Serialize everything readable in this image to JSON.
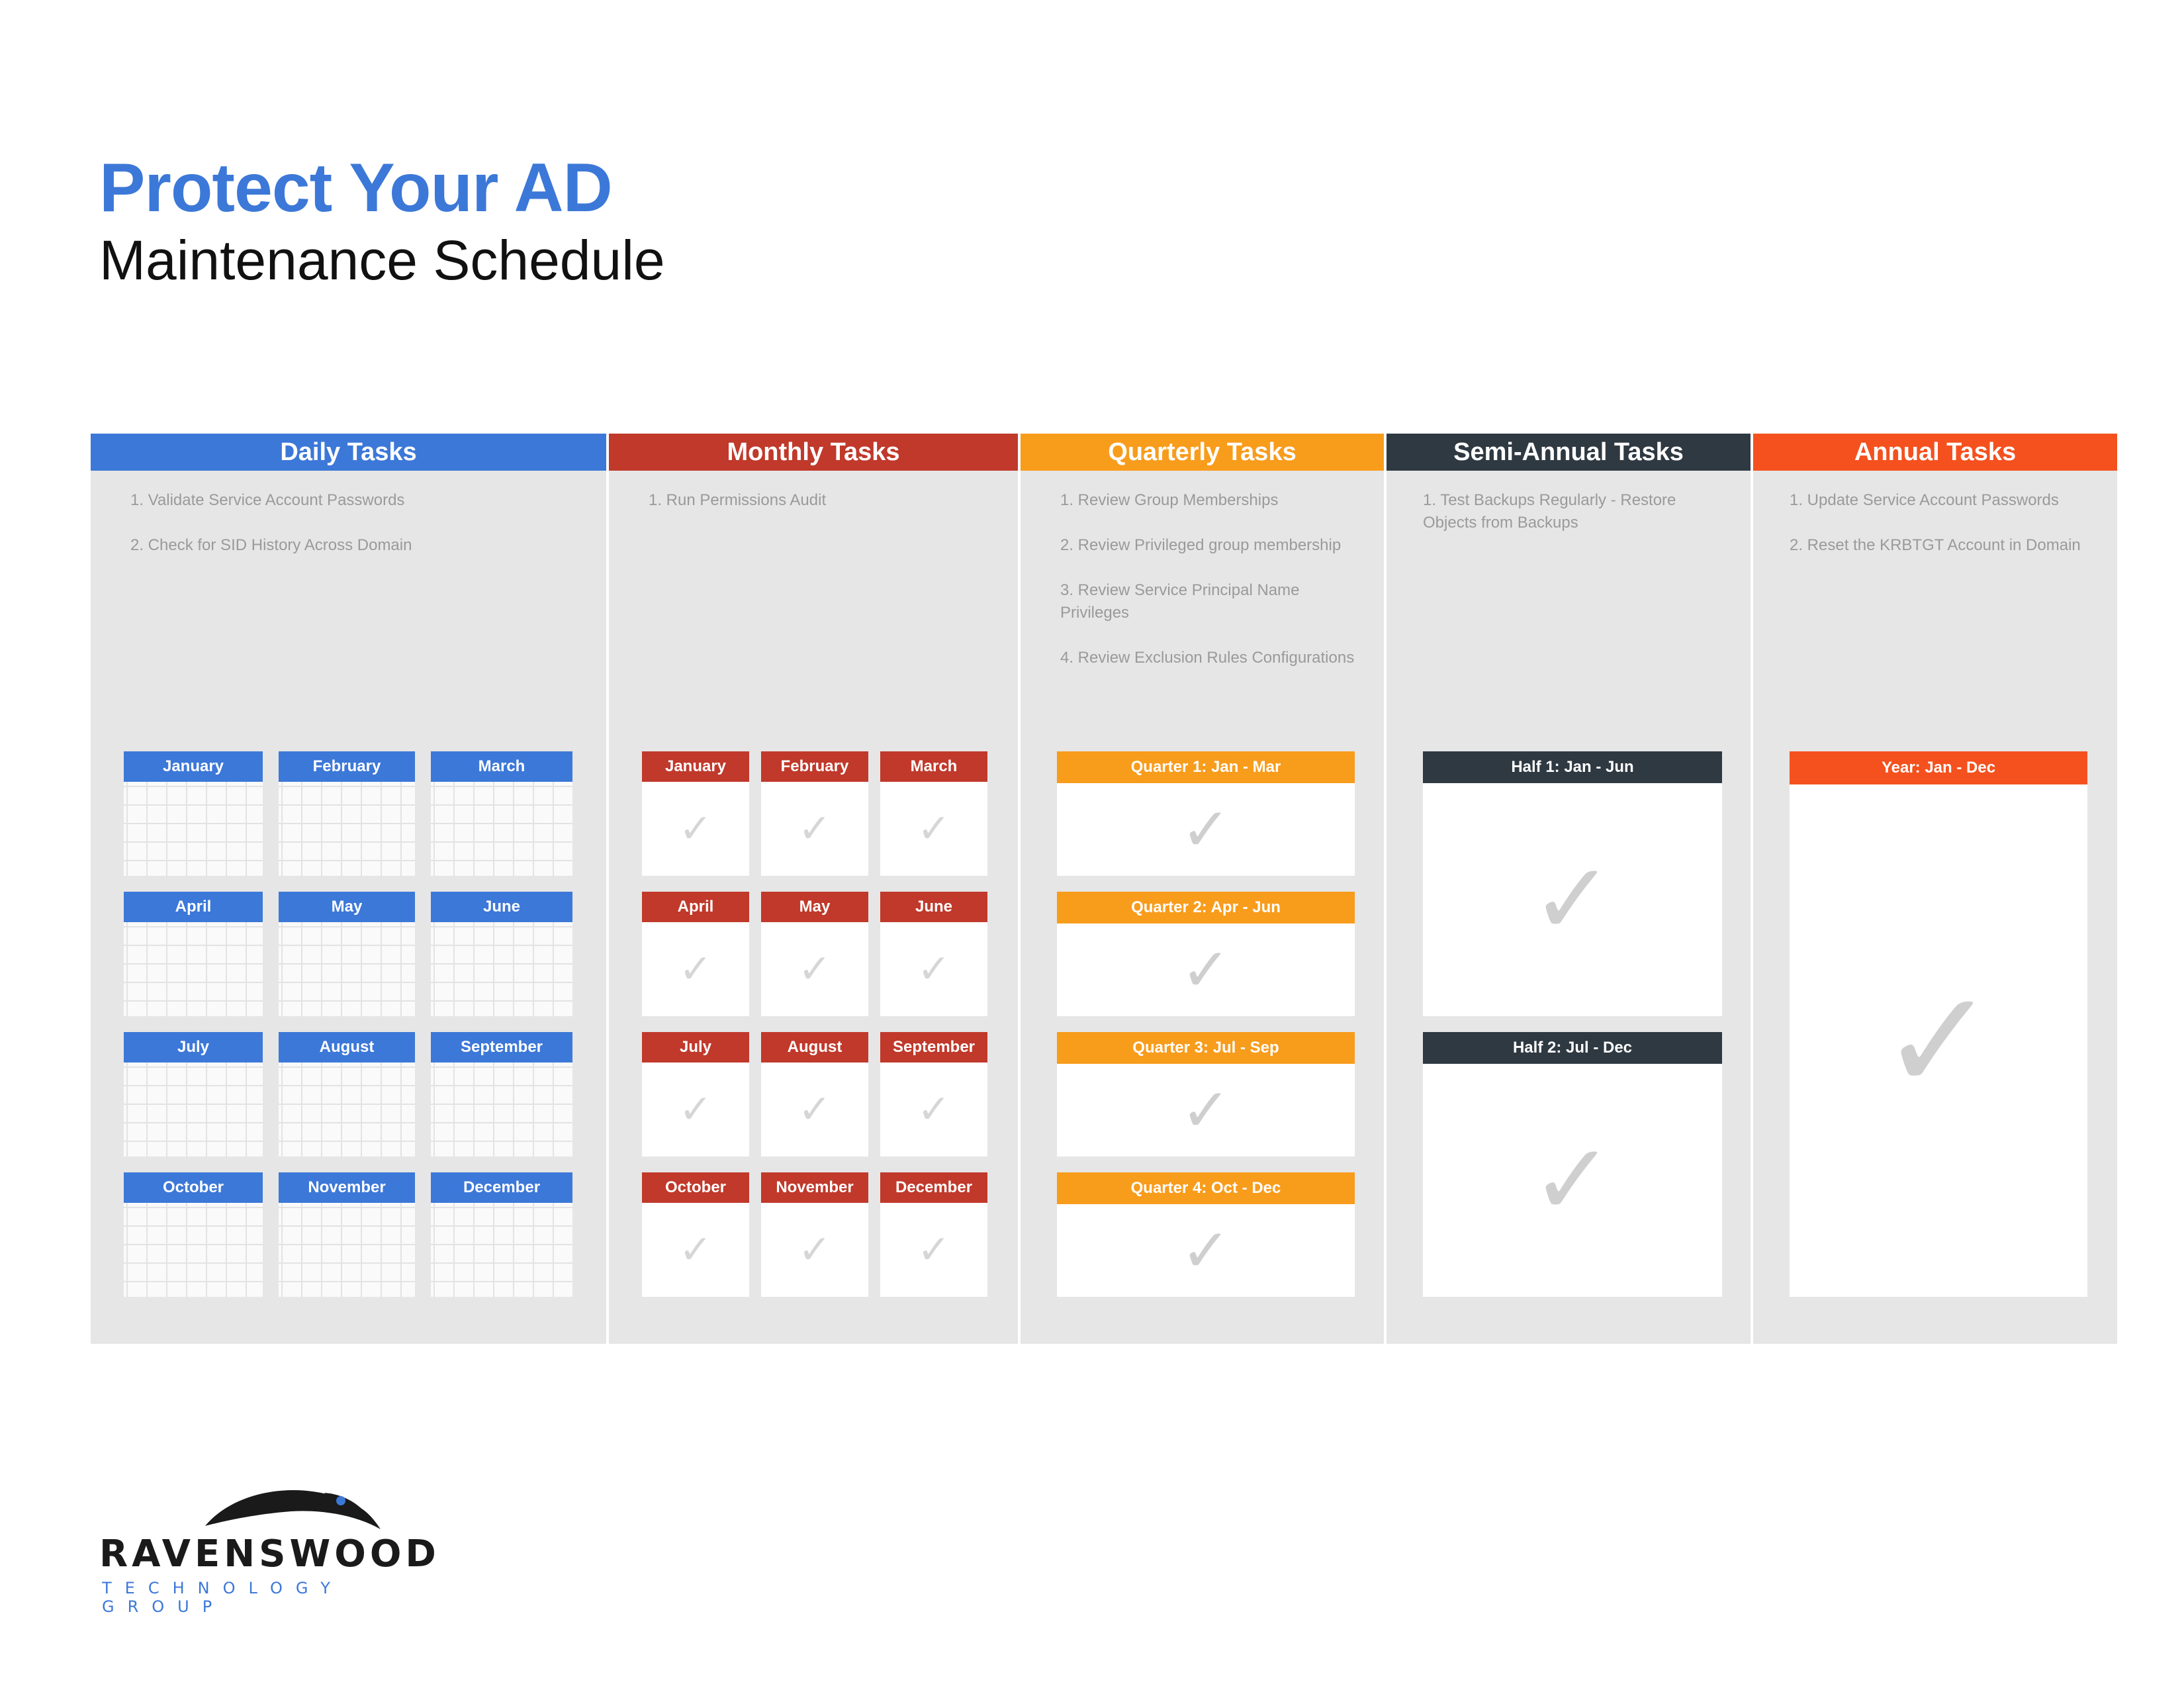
{
  "title": "Protect Your AD",
  "subtitle": "Maintenance Schedule",
  "colors": {
    "title": "#3c78d8",
    "daily": "#3c78d8",
    "monthly": "#c0392b",
    "quarterly": "#f89c1c",
    "semi": "#2f3942",
    "annual": "#f4511e"
  },
  "columns": {
    "daily": {
      "header": "Daily Tasks",
      "tasks": [
        "1. Validate Service Account Passwords",
        "2. Check for SID History Across Domain"
      ],
      "months": [
        "January",
        "February",
        "March",
        "April",
        "May",
        "June",
        "July",
        "August",
        "September",
        "October",
        "November",
        "December"
      ]
    },
    "monthly": {
      "header": "Monthly Tasks",
      "tasks": [
        "1. Run Permissions Audit"
      ],
      "months": [
        "January",
        "February",
        "March",
        "April",
        "May",
        "June",
        "July",
        "August",
        "September",
        "October",
        "November",
        "December"
      ],
      "check": "✓"
    },
    "quarterly": {
      "header": "Quarterly Tasks",
      "tasks": [
        "1. Review Group Memberships",
        "2. Review Privileged group membership",
        "3. Review Service Principal Name Privileges",
        "4. Review Exclusion Rules Configurations"
      ],
      "quarters": [
        "Quarter 1: Jan - Mar",
        "Quarter 2: Apr - Jun",
        "Quarter 3: Jul - Sep",
        "Quarter 4: Oct - Dec"
      ],
      "check": "✓"
    },
    "semi": {
      "header": "Semi-Annual Tasks",
      "tasks": [
        "1. Test Backups Regularly - Restore Objects from Backups"
      ],
      "halves": [
        "Half 1: Jan - Jun",
        "Half 2: Jul - Dec"
      ],
      "check": "✓"
    },
    "annual": {
      "header": "Annual Tasks",
      "tasks": [
        "1. Update Service Account Passwords",
        "2. Reset the KRBTGT Account in Domain"
      ],
      "year": "Year: Jan - Dec",
      "check": "✓"
    }
  },
  "logo": {
    "name": "RAVENSWOOD",
    "tagline": "TECHNOLOGY GROUP"
  }
}
